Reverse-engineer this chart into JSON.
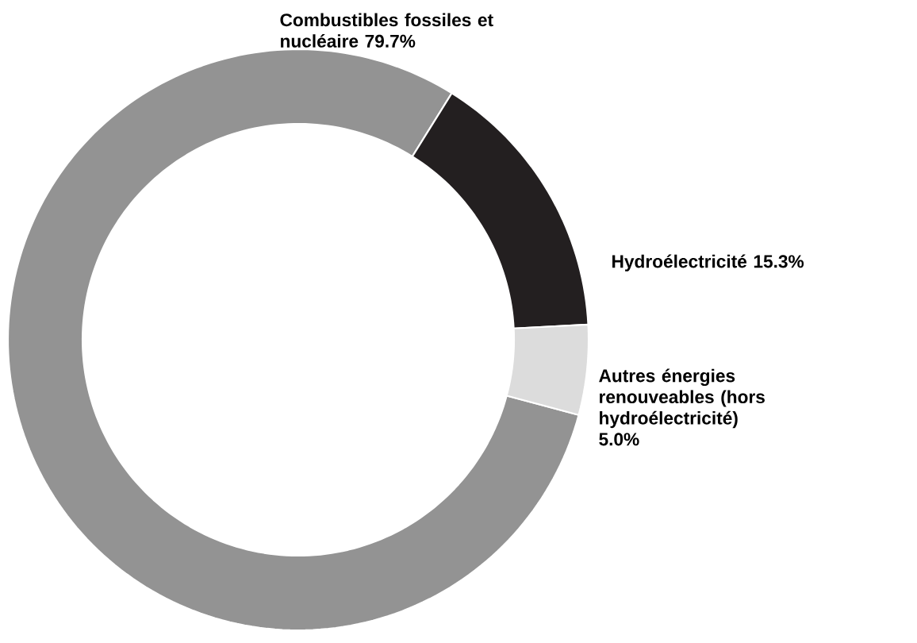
{
  "chart_data": {
    "type": "donut",
    "categories": [
      "Combustibles fossiles et nucléaire",
      "Hydroélectricité",
      "Autres énergies renouveables (hors hydroélectricité)"
    ],
    "values": [
      79.7,
      15.3,
      5.0
    ],
    "value_labels": [
      "79.7%",
      "15.3%",
      "5.0%"
    ],
    "colors": [
      "#939393",
      "#231f20",
      "#dcdcdc"
    ]
  }
}
